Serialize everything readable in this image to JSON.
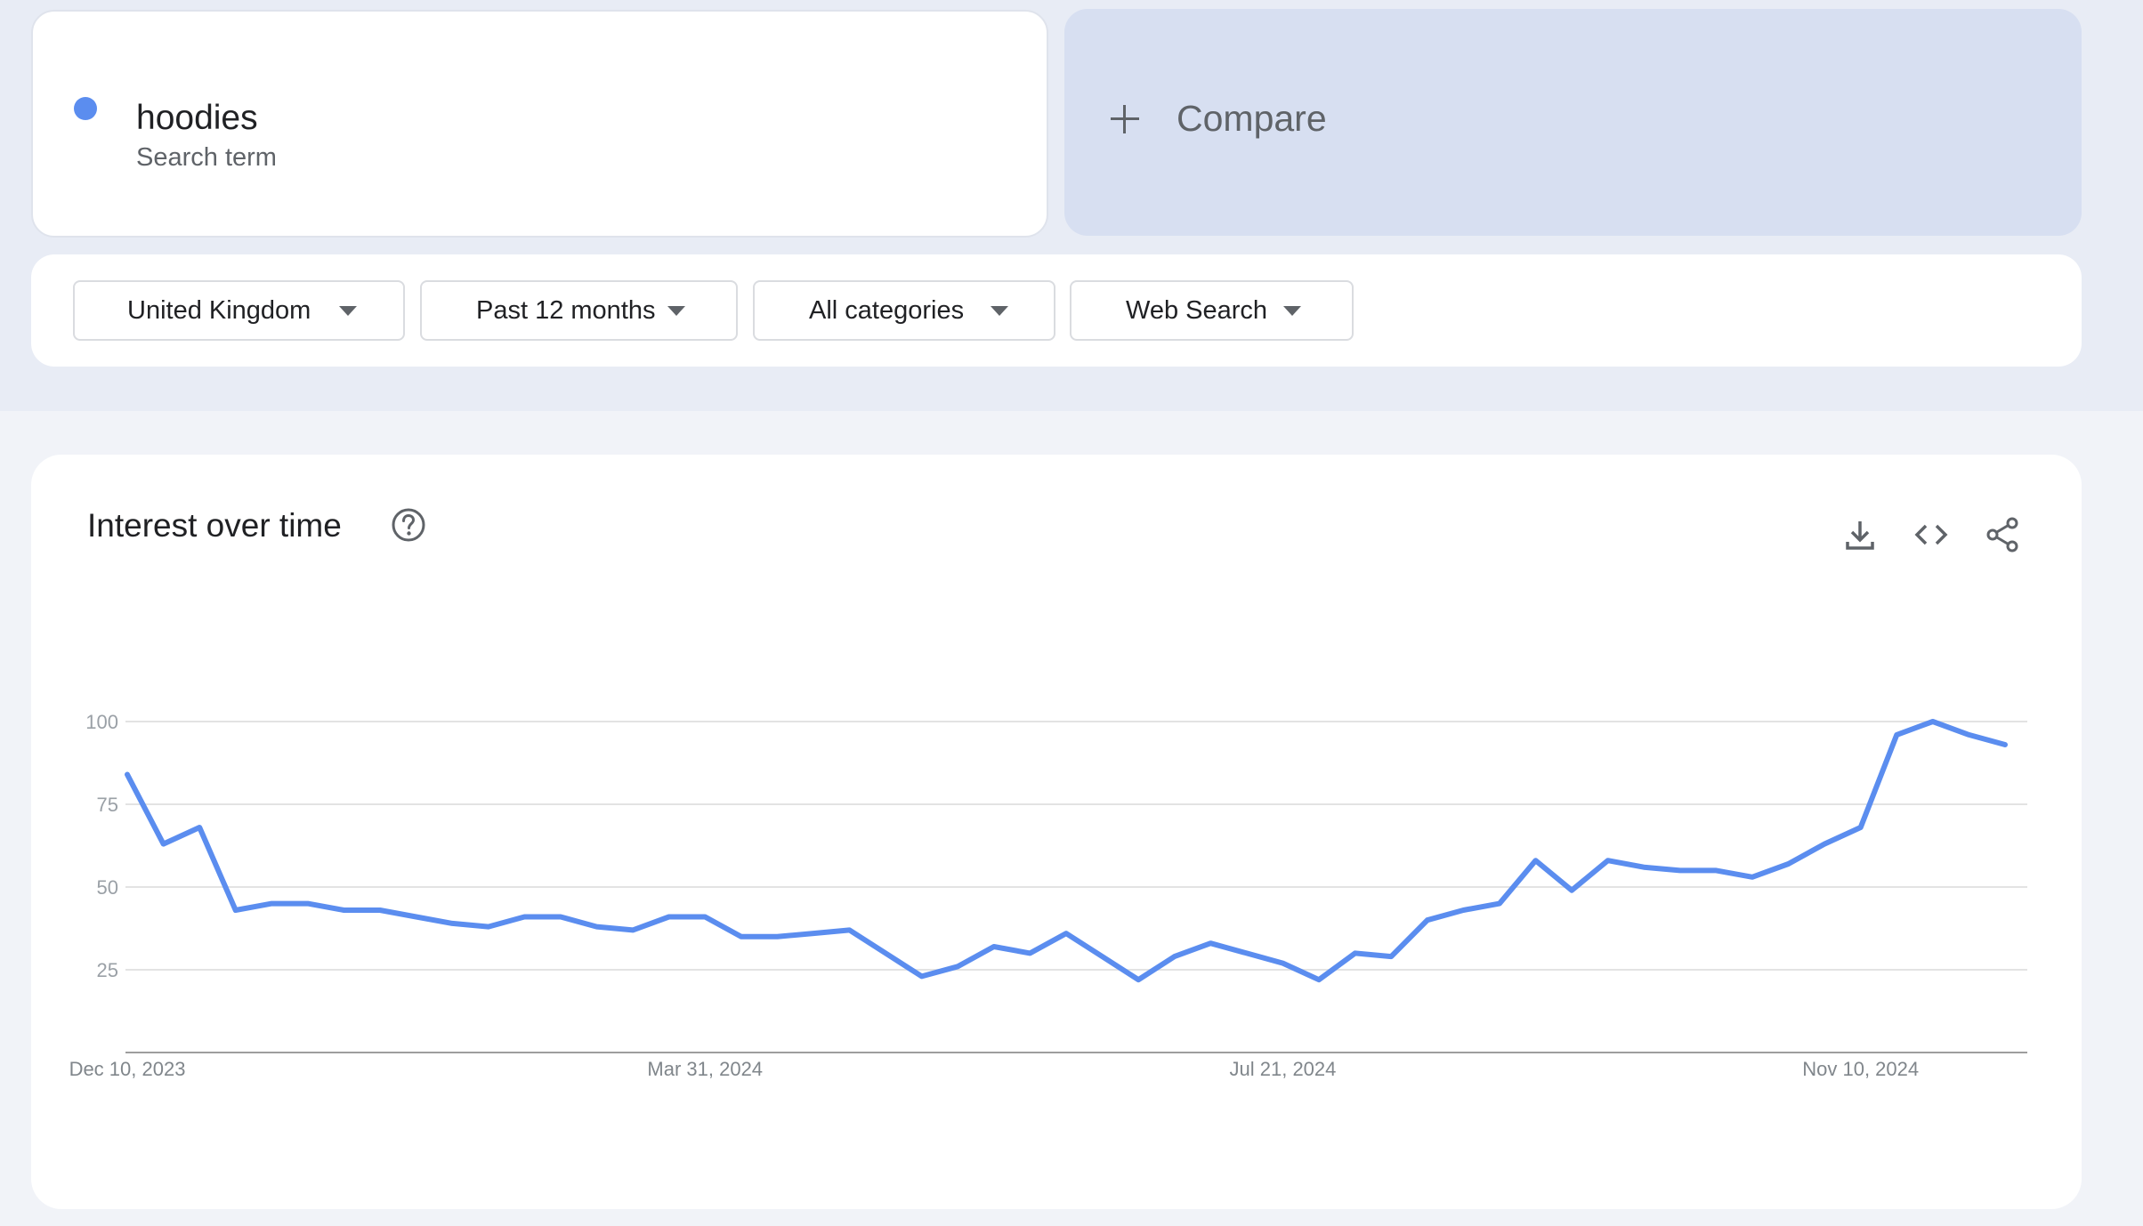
{
  "term": {
    "name": "hoodies",
    "subtitle": "Search term",
    "dot_color": "#5b8def"
  },
  "compare": {
    "label": "Compare",
    "icon": "plus-icon"
  },
  "filters": [
    {
      "label": "United Kingdom",
      "icon": "dropdown-caret-icon"
    },
    {
      "label": "Past 12 months",
      "icon": "dropdown-caret-icon"
    },
    {
      "label": "All categories",
      "icon": "dropdown-caret-icon"
    },
    {
      "label": "Web Search",
      "icon": "dropdown-caret-icon"
    }
  ],
  "panel": {
    "title": "Interest over time",
    "icons": [
      "help-circle-icon",
      "download-icon",
      "embed-code-icon",
      "share-icon"
    ]
  },
  "chart_data": {
    "type": "line",
    "title": "",
    "xlabel": "",
    "ylabel": "",
    "ylim": [
      0,
      100
    ],
    "yticks": [
      25,
      50,
      75,
      100
    ],
    "grid": true,
    "line_color": "#5b8def",
    "xtick_labels": [
      {
        "label": "Dec 10, 2023",
        "index": 0
      },
      {
        "label": "Mar 31, 2024",
        "index": 16
      },
      {
        "label": "Jul 21, 2024",
        "index": 32
      },
      {
        "label": "Nov 10, 2024",
        "index": 48
      }
    ],
    "series": [
      {
        "values": [
          84,
          63,
          68,
          43,
          45,
          45,
          43,
          43,
          41,
          39,
          38,
          41,
          41,
          38,
          37,
          41,
          41,
          35,
          35,
          36,
          37,
          30,
          23,
          26,
          32,
          30,
          36,
          29,
          22,
          29,
          33,
          30,
          27,
          22,
          30,
          29,
          40,
          43,
          45,
          58,
          49,
          58,
          56,
          55,
          55,
          53,
          57,
          63,
          68,
          96,
          100,
          96,
          93
        ]
      }
    ]
  }
}
